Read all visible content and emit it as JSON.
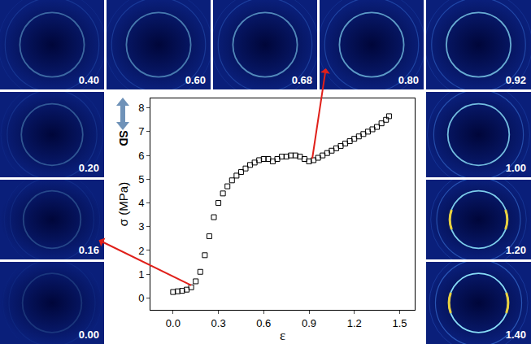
{
  "chart_data": {
    "type": "scatter",
    "x_label": "ε",
    "y_label": "σ (MPa)",
    "x": [
      0,
      0.03,
      0.06,
      0.09,
      0.12,
      0.15,
      0.18,
      0.21,
      0.24,
      0.27,
      0.3,
      0.33,
      0.36,
      0.39,
      0.42,
      0.45,
      0.48,
      0.51,
      0.54,
      0.57,
      0.6,
      0.63,
      0.66,
      0.69,
      0.72,
      0.75,
      0.78,
      0.81,
      0.84,
      0.87,
      0.9,
      0.93,
      0.96,
      0.99,
      1.02,
      1.05,
      1.08,
      1.11,
      1.14,
      1.17,
      1.2,
      1.23,
      1.26,
      1.29,
      1.32,
      1.35,
      1.38,
      1.41,
      1.43
    ],
    "values": [
      0.25,
      0.28,
      0.3,
      0.35,
      0.45,
      0.7,
      1.1,
      1.8,
      2.6,
      3.4,
      4.0,
      4.4,
      4.7,
      4.95,
      5.15,
      5.3,
      5.45,
      5.6,
      5.7,
      5.8,
      5.85,
      5.85,
      5.75,
      5.85,
      5.95,
      5.95,
      6.0,
      6.0,
      5.95,
      5.85,
      5.75,
      5.8,
      5.9,
      6.0,
      6.1,
      6.2,
      6.3,
      6.4,
      6.5,
      6.6,
      6.7,
      6.8,
      6.9,
      7.0,
      7.1,
      7.2,
      7.35,
      7.5,
      7.65
    ],
    "color": "#000000",
    "marker": "square-open",
    "xlim": [
      -0.15,
      1.6
    ],
    "ylim": [
      -0.5,
      8.4
    ],
    "xticks": [
      {
        "value": 0,
        "label": "0.0"
      },
      {
        "value": 0.3,
        "label": "0.3"
      },
      {
        "value": 0.6,
        "label": "0.6"
      },
      {
        "value": 0.9,
        "label": "0.9"
      },
      {
        "value": 1.2,
        "label": "1.2"
      },
      {
        "value": 1.5,
        "label": "1.5"
      }
    ],
    "yticks": [
      0,
      1,
      2,
      3,
      4,
      5,
      6,
      7,
      8
    ],
    "grid": false
  },
  "direction_label": "SD",
  "patterns": [
    "0.00",
    "0.16",
    "0.20",
    "0.40",
    "0.60",
    "0.68",
    "0.80",
    "0.92",
    "1.00",
    "1.20",
    "1.40"
  ],
  "arrows": [
    {
      "x": 0.13,
      "y": 0.5,
      "pattern": "0.16"
    },
    {
      "x": 0.92,
      "y": 5.8,
      "pattern": "0.80"
    }
  ]
}
